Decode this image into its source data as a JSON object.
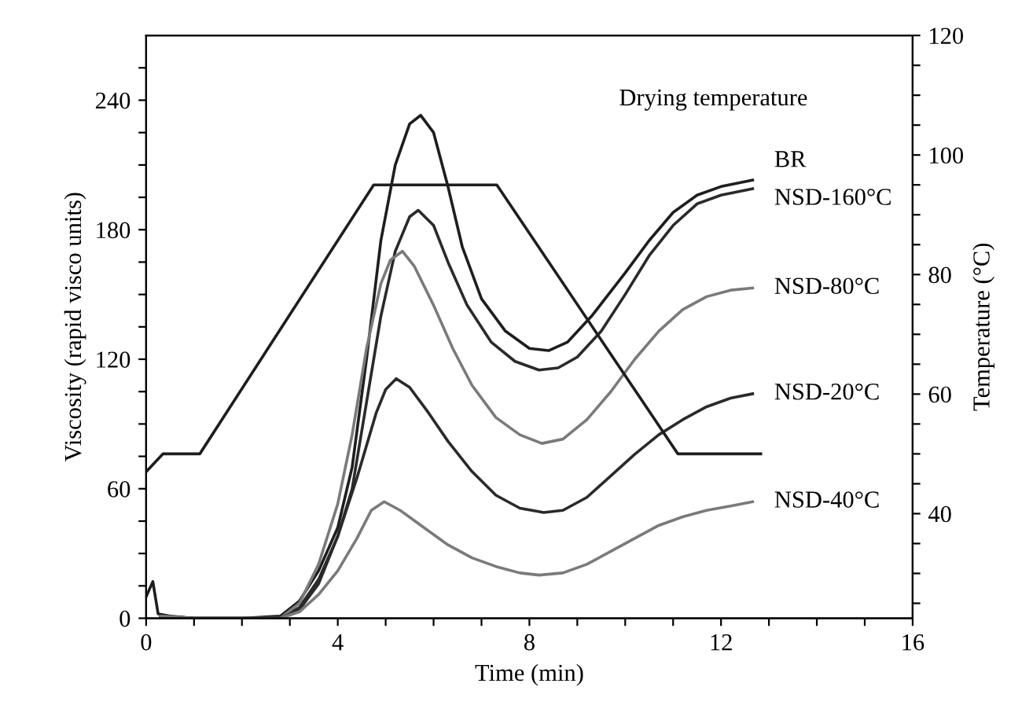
{
  "chart_data": {
    "type": "line",
    "xlabel": "Time (min)",
    "ylabel": "Viscosity (rapid visco units)",
    "y2label": "Temperature (°C)",
    "legend_title": "Drying temperature",
    "xlim": [
      0,
      16
    ],
    "xticks": [
      0,
      {
        "value": 1,
        "label": null
      },
      {
        "value": 2,
        "label": null
      },
      {
        "value": 3,
        "label": null
      },
      4,
      {
        "value": 5,
        "label": null
      },
      {
        "value": 6,
        "label": null
      },
      {
        "value": 7,
        "label": null
      },
      8,
      {
        "value": 9,
        "label": null
      },
      {
        "value": 10,
        "label": null
      },
      {
        "value": 11,
        "label": null
      },
      12,
      {
        "value": 13,
        "label": null
      },
      {
        "value": 14,
        "label": null
      },
      {
        "value": 15,
        "label": null
      },
      16
    ],
    "ylim": [
      0,
      270
    ],
    "yticks": [
      0,
      {
        "value": 15,
        "label": null
      },
      {
        "value": 30,
        "label": null
      },
      {
        "value": 45,
        "label": null
      },
      60,
      {
        "value": 75,
        "label": null
      },
      {
        "value": 90,
        "label": null
      },
      {
        "value": 105,
        "label": null
      },
      120,
      {
        "value": 135,
        "label": null
      },
      {
        "value": 150,
        "label": null
      },
      {
        "value": 165,
        "label": null
      },
      180,
      {
        "value": 195,
        "label": null
      },
      {
        "value": 210,
        "label": null
      },
      {
        "value": 225,
        "label": null
      },
      240,
      {
        "value": 255,
        "label": null
      }
    ],
    "y2lim": [
      22.5,
      120
    ],
    "y2ticks": [
      {
        "value": 25,
        "label": null
      },
      {
        "value": 30,
        "label": null
      },
      {
        "value": 35,
        "label": null
      },
      40,
      {
        "value": 45,
        "label": null
      },
      {
        "value": 50,
        "label": null
      },
      {
        "value": 55,
        "label": null
      },
      60,
      {
        "value": 65,
        "label": null
      },
      {
        "value": 70,
        "label": null
      },
      {
        "value": 75,
        "label": null
      },
      80,
      {
        "value": 85,
        "label": null
      },
      {
        "value": 90,
        "label": null
      },
      {
        "value": 95,
        "label": null
      },
      100,
      {
        "value": 105,
        "label": null
      },
      {
        "value": 110,
        "label": null
      },
      {
        "value": 115,
        "label": null
      },
      120
    ],
    "grid": false,
    "legend": false,
    "marker": "none",
    "line_style": "solid",
    "series": [
      {
        "name": "BR",
        "color": "#1e1e1e",
        "x": [
          0,
          0.14,
          0.25,
          0.5,
          1,
          2,
          2.8,
          3.2,
          3.6,
          4,
          4.3,
          4.6,
          4.9,
          5.2,
          5.5,
          5.73,
          6.0,
          6.3,
          6.6,
          7.0,
          7.5,
          8.0,
          8.4,
          8.8,
          9.3,
          10,
          10.5,
          11,
          11.5,
          12,
          12.66
        ],
        "values": [
          10,
          17,
          2,
          1,
          0,
          0,
          1,
          8,
          22,
          42,
          70,
          120,
          175,
          210,
          229,
          233,
          225,
          200,
          172,
          148,
          133,
          125,
          124,
          128,
          140,
          160,
          175,
          188,
          196,
          200,
          203
        ]
      },
      {
        "name": "NSD-160°C",
        "color": "#2a2a2a",
        "x": [
          0.3,
          1,
          2,
          2.8,
          3.2,
          3.6,
          4,
          4.3,
          4.6,
          4.9,
          5.2,
          5.5,
          5.68,
          6.0,
          6.3,
          6.7,
          7.2,
          7.7,
          8.2,
          8.6,
          9,
          9.5,
          10,
          10.5,
          11,
          11.5,
          12,
          12.66
        ],
        "values": [
          1,
          0,
          0,
          0,
          5,
          18,
          38,
          60,
          100,
          140,
          170,
          186,
          189,
          182,
          165,
          145,
          128,
          119,
          115,
          116,
          121,
          133,
          150,
          168,
          182,
          192,
          196,
          199
        ]
      },
      {
        "name": "NSD-80°C",
        "color": "#7a7a7a",
        "x": [
          0.3,
          1,
          2,
          2.8,
          3.2,
          3.6,
          4,
          4.3,
          4.6,
          4.9,
          5.1,
          5.35,
          5.6,
          6.0,
          6.4,
          6.8,
          7.3,
          7.8,
          8.26,
          8.7,
          9.2,
          9.7,
          10.2,
          10.7,
          11.2,
          11.7,
          12.2,
          12.66
        ],
        "values": [
          1,
          0,
          0,
          0,
          7,
          25,
          53,
          85,
          125,
          155,
          166,
          170,
          163,
          145,
          125,
          108,
          93,
          85,
          81,
          83,
          92,
          105,
          120,
          133,
          143,
          149,
          152,
          153
        ]
      },
      {
        "name": "NSD-20°C",
        "color": "#2a2a2a",
        "x": [
          0.3,
          1,
          2,
          2.8,
          3.2,
          3.6,
          4,
          4.4,
          4.8,
          5.0,
          5.22,
          5.5,
          5.9,
          6.3,
          6.8,
          7.3,
          7.8,
          8.3,
          8.7,
          9.2,
          9.7,
          10.2,
          10.7,
          11.2,
          11.7,
          12.2,
          12.66
        ],
        "values": [
          1,
          0,
          0,
          0,
          4,
          16,
          38,
          65,
          95,
          106,
          111,
          107,
          95,
          82,
          68,
          57,
          51,
          49,
          50,
          56,
          66,
          76,
          85,
          92,
          98,
          102,
          104
        ]
      },
      {
        "name": "NSD-40°C",
        "color": "#7a7a7a",
        "x": [
          0.3,
          1,
          2,
          2.8,
          3.2,
          3.6,
          4,
          4.4,
          4.7,
          4.97,
          5.3,
          5.8,
          6.3,
          6.8,
          7.3,
          7.8,
          8.2,
          8.7,
          9.2,
          9.7,
          10.2,
          10.7,
          11.2,
          11.7,
          12.2,
          12.66
        ],
        "values": [
          1,
          0,
          0,
          0,
          3,
          11,
          22,
          37,
          50,
          54,
          50,
          42,
          34,
          28,
          24,
          21,
          20,
          21,
          25,
          31,
          37,
          43,
          47,
          50,
          52,
          54
        ]
      },
      {
        "color": "#1e1e1e",
        "axis": "y2",
        "x": [
          0,
          0.35,
          1.12,
          4.75,
          7.32,
          11.1,
          12.83
        ],
        "values": [
          47,
          50,
          50,
          95,
          95,
          50,
          50
        ]
      }
    ]
  }
}
